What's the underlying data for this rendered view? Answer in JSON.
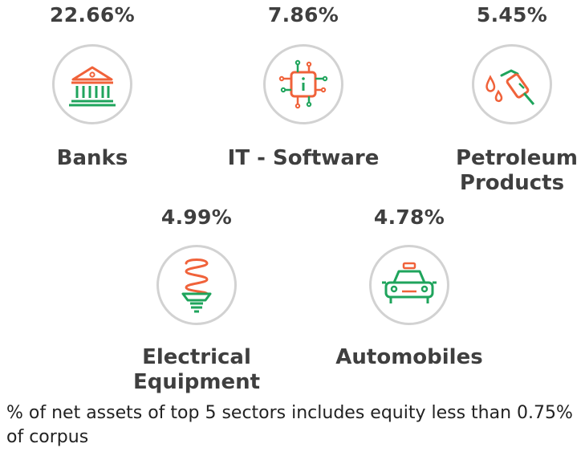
{
  "colors": {
    "accent_red": "#f0623a",
    "accent_green": "#1fa45c",
    "ring": "#d2d2d2",
    "text": "#3f3f3f"
  },
  "sectors": [
    {
      "name": "Banks",
      "percent": "22.66%",
      "icon": "bank-icon"
    },
    {
      "name": "IT - Software",
      "percent": "7.86%",
      "icon": "chip-icon"
    },
    {
      "name": "Petroleum Products",
      "percent": "5.45%",
      "icon": "fuel-nozzle-icon"
    },
    {
      "name": "Electrical Equipment",
      "percent": "4.99%",
      "icon": "light-bulb-icon"
    },
    {
      "name": "Automobiles",
      "percent": "4.78%",
      "icon": "car-icon"
    }
  ],
  "footnote": "% of net assets of top 5 sectors includes equity less than 0.75% of corpus"
}
